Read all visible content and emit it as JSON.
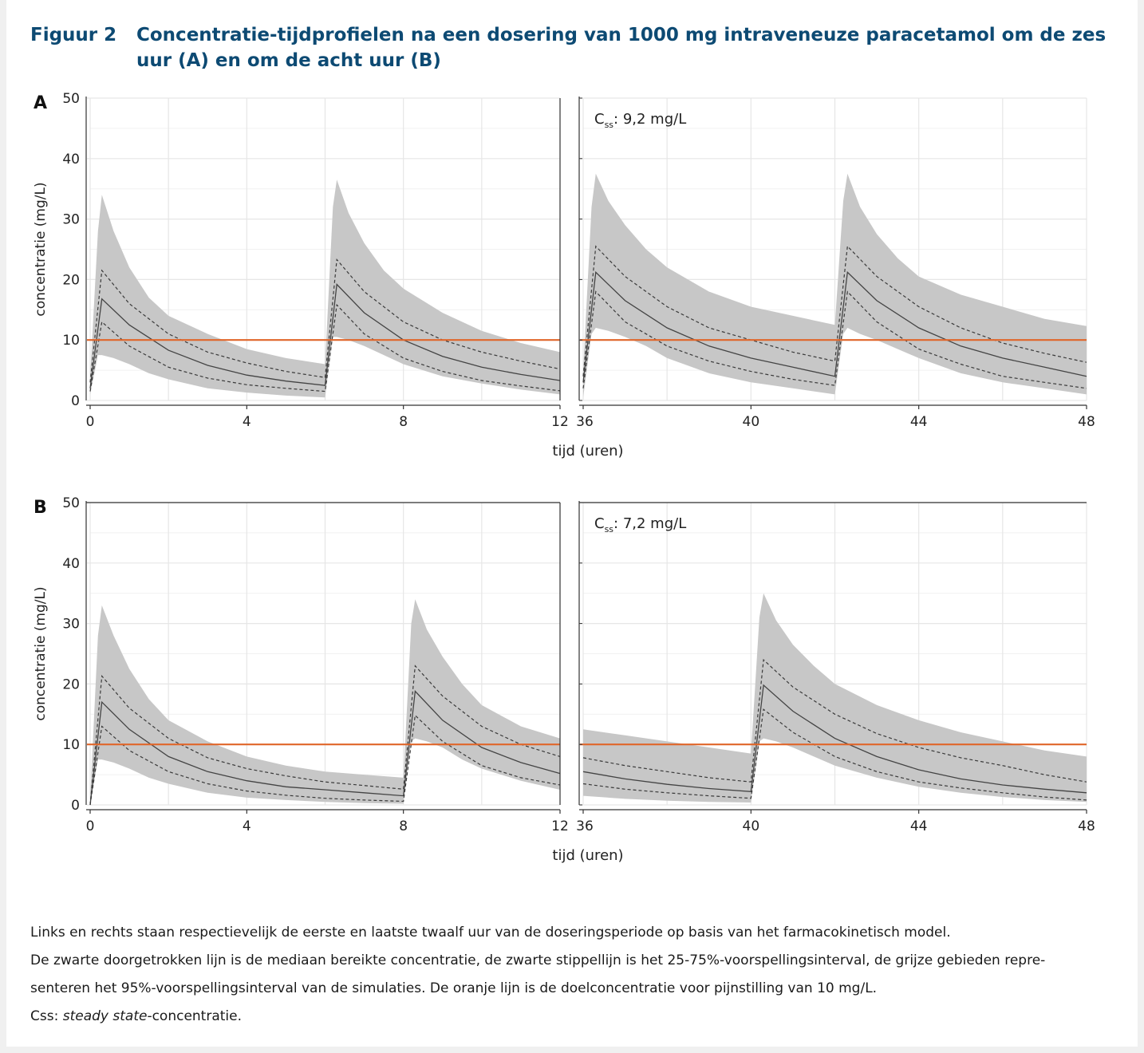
{
  "figure": {
    "number": "Figuur 2",
    "title": "Concentratie-tijdprofielen na een dosering van 1000 mg intraveneuze paracetamol om de zes uur (A) en om de acht uur (B)"
  },
  "caption": {
    "line1": "Links en rechts staan respectievelijk de eerste en laatste twaalf uur van de doseringsperiode op basis van het farmacokinetisch model.",
    "line2": "De zwarte doorgetrokken lijn is de mediaan bereikte concentratie, de zwarte stippellijn is het 25-75%-voorspellingsinterval, de grijze gebieden repre-",
    "line3": "senteren het 95%-voorspellingsinterval van de simulaties. De oranje lijn is de doelconcentratie voor pijnstilling van 10 mg/L.",
    "line4_prefix": "Css: ",
    "line4_italic": "steady state",
    "line4_suffix": "-concentratie."
  },
  "colors": {
    "band": "#c7c7c7",
    "median": "#444444",
    "target": "#e0662a",
    "grid": "#e6e6e6",
    "axis": "#333333",
    "title": "#0d4a73"
  },
  "chart_data": [
    {
      "type": "line",
      "panel": "A",
      "side": "left",
      "ylabel": "concentratie (mg/L)",
      "xlabel": "tijd (uren)",
      "xlim": [
        0,
        12
      ],
      "ylim": [
        0,
        50
      ],
      "xticks": [
        0,
        4,
        8,
        12
      ],
      "yticks": [
        0,
        10,
        20,
        30,
        40,
        50
      ],
      "target": 10,
      "dose_times": [
        0,
        6
      ],
      "series": [
        {
          "role": "band95",
          "x": [
            0,
            0.2,
            0.3,
            0.6,
            1,
            1.5,
            2,
            3,
            4,
            5,
            6,
            6.2,
            6.3,
            6.6,
            7,
            7.5,
            8,
            9,
            10,
            11,
            12
          ],
          "lo": [
            1,
            7.5,
            7.5,
            7,
            6,
            4.5,
            3.5,
            2,
            1.3,
            0.8,
            0.5,
            10.5,
            10.5,
            10,
            9,
            7.5,
            6,
            4,
            2.8,
            1.8,
            1
          ],
          "hi": [
            4,
            28,
            34,
            28,
            22,
            17,
            14,
            11,
            8.5,
            7,
            6,
            32,
            36.5,
            31,
            26,
            21.5,
            18.5,
            14.5,
            11.5,
            9.5,
            8
          ]
        },
        {
          "role": "q75",
          "x": [
            0,
            0.3,
            1,
            2,
            3,
            4,
            5,
            6,
            6.3,
            7,
            8,
            9,
            10,
            11,
            12
          ],
          "y": [
            3,
            21.5,
            16,
            11,
            8,
            6.2,
            4.8,
            3.8,
            23.3,
            18,
            13,
            10,
            8,
            6.5,
            5.2
          ]
        },
        {
          "role": "median",
          "x": [
            0,
            0.3,
            1,
            2,
            3,
            4,
            5,
            6,
            6.3,
            7,
            8,
            9,
            10,
            11,
            12
          ],
          "y": [
            2,
            16.8,
            12.5,
            8.3,
            5.8,
            4.2,
            3.2,
            2.5,
            19.2,
            14.5,
            10,
            7.3,
            5.5,
            4.3,
            3.3
          ]
        },
        {
          "role": "q25",
          "x": [
            0,
            0.3,
            1,
            2,
            3,
            4,
            5,
            6,
            6.3,
            7,
            8,
            9,
            10,
            11,
            12
          ],
          "y": [
            1.5,
            13,
            9,
            5.5,
            3.7,
            2.6,
            2,
            1.5,
            15.8,
            11,
            7,
            4.8,
            3.3,
            2.4,
            1.6
          ]
        }
      ]
    },
    {
      "type": "line",
      "panel": "A",
      "side": "right",
      "annotation_main": "C",
      "annotation_sub": "ss",
      "annotation_rest": ": 9,2 mg/L",
      "xlim": [
        36,
        48
      ],
      "ylim": [
        0,
        50
      ],
      "xticks": [
        36,
        40,
        44,
        48
      ],
      "yticks": [
        0,
        10,
        20,
        30,
        40,
        50
      ],
      "target": 10,
      "dose_times": [
        36,
        42
      ],
      "series": [
        {
          "role": "band95",
          "x": [
            36,
            36.2,
            36.3,
            36.6,
            37,
            37.5,
            38,
            39,
            40,
            41,
            42,
            42.2,
            42.3,
            42.6,
            43,
            43.5,
            44,
            45,
            46,
            47,
            48
          ],
          "lo": [
            0.5,
            11,
            12,
            11.5,
            10.5,
            9,
            7,
            4.5,
            3,
            2,
            1,
            11,
            12,
            11,
            10,
            8.5,
            7,
            4.5,
            3,
            2,
            1
          ],
          "hi": [
            5,
            32,
            37.5,
            33,
            29,
            25,
            22,
            18,
            15.5,
            14,
            12.5,
            33,
            37.5,
            32,
            27.5,
            23.5,
            20.5,
            17.5,
            15.5,
            13.5,
            12.3
          ]
        },
        {
          "role": "q75",
          "x": [
            36,
            36.3,
            37,
            38,
            39,
            40,
            41,
            42,
            42.3,
            43,
            44,
            45,
            46,
            47,
            48
          ],
          "y": [
            4,
            25.5,
            20.5,
            15.5,
            12,
            10,
            8,
            6.5,
            25.5,
            20.5,
            15.5,
            12,
            9.5,
            7.8,
            6.3
          ]
        },
        {
          "role": "median",
          "x": [
            36,
            36.3,
            37,
            38,
            39,
            40,
            41,
            42,
            42.3,
            43,
            44,
            45,
            46,
            47,
            48
          ],
          "y": [
            3,
            21.2,
            16.5,
            12,
            9,
            7,
            5.5,
            4,
            21.2,
            16.5,
            12,
            9,
            7,
            5.5,
            4
          ]
        },
        {
          "role": "q25",
          "x": [
            36,
            36.3,
            37,
            38,
            39,
            40,
            41,
            42,
            42.3,
            43,
            44,
            45,
            46,
            47,
            48
          ],
          "y": [
            2,
            18,
            13,
            9,
            6.5,
            4.8,
            3.5,
            2.5,
            18,
            13,
            8.5,
            6,
            4,
            3,
            2
          ]
        }
      ]
    },
    {
      "type": "line",
      "panel": "B",
      "side": "left",
      "ylabel": "concentratie (mg/L)",
      "xlabel": "tijd (uren)",
      "xlim": [
        0,
        12
      ],
      "ylim": [
        0,
        50
      ],
      "xticks": [
        0,
        4,
        8,
        12
      ],
      "yticks": [
        0,
        10,
        20,
        30,
        40,
        50
      ],
      "target": 10,
      "dose_times": [
        0,
        8
      ],
      "series": [
        {
          "role": "band95",
          "x": [
            0,
            0.2,
            0.3,
            0.6,
            1,
            1.5,
            2,
            3,
            4,
            5,
            6,
            7,
            8,
            8.2,
            8.3,
            8.6,
            9,
            9.5,
            10,
            11,
            12
          ],
          "lo": [
            0,
            7.5,
            7.5,
            7,
            6,
            4.5,
            3.5,
            2,
            1.2,
            0.8,
            0.5,
            0.3,
            0.2,
            10.5,
            11,
            10.5,
            9.5,
            7.5,
            6,
            4,
            2.5
          ],
          "hi": [
            1,
            28,
            33,
            28,
            22.5,
            17.5,
            14,
            10.5,
            8,
            6.5,
            5.5,
            5,
            4.5,
            30,
            34,
            29,
            24.5,
            20,
            16.5,
            13,
            11
          ]
        },
        {
          "role": "q75",
          "x": [
            0,
            0.3,
            1,
            2,
            3,
            4,
            5,
            6,
            7,
            8,
            8.3,
            9,
            10,
            11,
            12
          ],
          "y": [
            0,
            21.3,
            16,
            11,
            7.8,
            6,
            4.8,
            3.8,
            3.2,
            2.6,
            23,
            18,
            13,
            10,
            8
          ]
        },
        {
          "role": "median",
          "x": [
            0,
            0.3,
            1,
            2,
            3,
            4,
            5,
            6,
            7,
            8,
            8.3,
            9,
            10,
            11,
            12
          ],
          "y": [
            0,
            17,
            12.5,
            8,
            5.5,
            4,
            3,
            2.5,
            2,
            1.5,
            18.8,
            14,
            9.5,
            7,
            5.2
          ]
        },
        {
          "role": "q25",
          "x": [
            0,
            0.3,
            1,
            2,
            3,
            4,
            5,
            6,
            7,
            8,
            8.3,
            9,
            10,
            11,
            12
          ],
          "y": [
            0,
            13,
            9,
            5.5,
            3.5,
            2.3,
            1.6,
            1.1,
            0.8,
            0.6,
            14.8,
            10.5,
            6.5,
            4.5,
            3.3
          ]
        }
      ]
    },
    {
      "type": "line",
      "panel": "B",
      "side": "right",
      "annotation_main": "C",
      "annotation_sub": "ss",
      "annotation_rest": ": 7,2 mg/L",
      "xlim": [
        36,
        48
      ],
      "ylim": [
        0,
        50
      ],
      "xticks": [
        36,
        40,
        44,
        48
      ],
      "yticks": [
        0,
        10,
        20,
        30,
        40,
        50
      ],
      "target": 10,
      "dose_times": [
        40
      ],
      "series": [
        {
          "role": "band95",
          "x": [
            36,
            37,
            38,
            39,
            40,
            40.2,
            40.3,
            40.6,
            41,
            41.5,
            42,
            43,
            44,
            45,
            46,
            47,
            48
          ],
          "lo": [
            1.5,
            1,
            0.7,
            0.5,
            0.4,
            10.5,
            11,
            10.5,
            9.5,
            8,
            6.5,
            4.5,
            3,
            2,
            1.3,
            0.8,
            0.5
          ],
          "hi": [
            12.5,
            11.5,
            10.5,
            9.5,
            8.5,
            31,
            35,
            30.5,
            26.5,
            23,
            20,
            16.5,
            14,
            12,
            10.5,
            9,
            8
          ]
        },
        {
          "role": "q75",
          "x": [
            36,
            37,
            38,
            39,
            40,
            40.3,
            41,
            42,
            43,
            44,
            45,
            46,
            47,
            48
          ],
          "y": [
            7.8,
            6.5,
            5.5,
            4.5,
            3.8,
            24,
            19.5,
            15,
            11.8,
            9.5,
            7.8,
            6.5,
            5,
            3.8
          ]
        },
        {
          "role": "median",
          "x": [
            36,
            37,
            38,
            39,
            40,
            40.3,
            41,
            42,
            43,
            44,
            45,
            46,
            47,
            48
          ],
          "y": [
            5.5,
            4.3,
            3.4,
            2.7,
            2.2,
            19.8,
            15.5,
            11,
            8,
            5.8,
            4.3,
            3.3,
            2.6,
            2
          ]
        },
        {
          "role": "q25",
          "x": [
            36,
            37,
            38,
            39,
            40,
            40.3,
            41,
            42,
            43,
            44,
            45,
            46,
            47,
            48
          ],
          "y": [
            3.5,
            2.6,
            2,
            1.5,
            1.1,
            15.8,
            12,
            8,
            5.5,
            3.8,
            2.8,
            2,
            1.3,
            0.8
          ]
        }
      ]
    }
  ],
  "panel_labels": [
    "A",
    "B"
  ]
}
